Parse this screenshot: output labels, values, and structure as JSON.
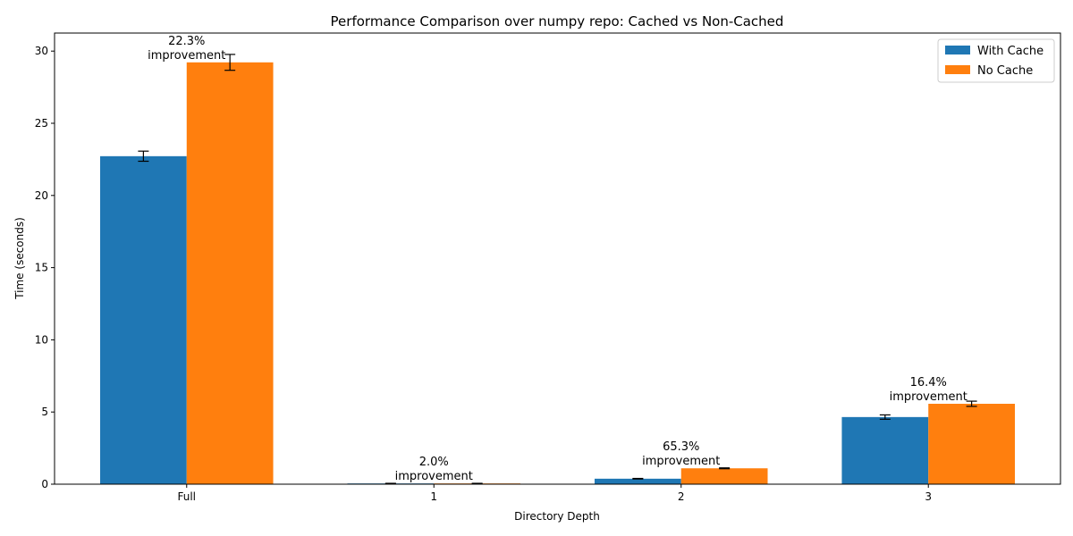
{
  "chart_data": {
    "type": "bar",
    "title": "Performance Comparison over numpy repo: Cached vs Non-Cached",
    "xlabel": "Directory Depth",
    "ylabel": "Time (seconds)",
    "categories": [
      "Full",
      "1",
      "2",
      "3"
    ],
    "ylim": [
      0,
      31.25
    ],
    "yticks": [
      0,
      5,
      10,
      15,
      20,
      25,
      30
    ],
    "grid": false,
    "legend_position": "top-right",
    "series": [
      {
        "name": "With Cache",
        "color": "#1f77b4",
        "values": [
          22.72,
          0.05,
          0.38,
          4.65
        ],
        "errors": [
          0.35,
          0.01,
          0.02,
          0.15
        ]
      },
      {
        "name": "No Cache",
        "color": "#ff7f0e",
        "values": [
          29.22,
          0.051,
          1.1,
          5.57
        ],
        "errors": [
          0.55,
          0.01,
          0.03,
          0.18
        ]
      }
    ],
    "annotations": [
      {
        "category": "Full",
        "line1": "22.3%",
        "line2": "improvement"
      },
      {
        "category": "1",
        "line1": "2.0%",
        "line2": "improvement"
      },
      {
        "category": "2",
        "line1": "65.3%",
        "line2": "improvement"
      },
      {
        "category": "3",
        "line1": "16.4%",
        "line2": "improvement"
      }
    ]
  }
}
